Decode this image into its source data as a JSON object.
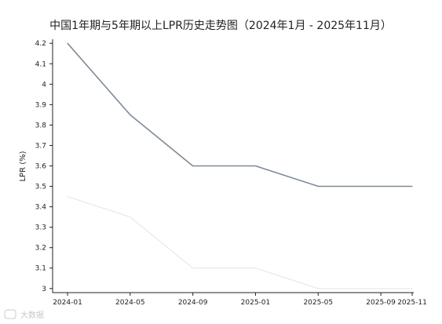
{
  "chart_data": {
    "type": "line",
    "title": "中国1年期与5年期以上LPR历史走势图（2024年1月 - 2025年11月）",
    "ylabel": "LPR (%)",
    "xlabel": "",
    "x": [
      "2024-01",
      "2024-05",
      "2024-09",
      "2025-01",
      "2025-05",
      "2025-09",
      "2025-11"
    ],
    "x_ticks": [
      "2024-01",
      "2024-05",
      "2024-09",
      "2025-01",
      "2025-05",
      "2025-09",
      "2025-11"
    ],
    "y_ticks": [
      "3",
      "3.1",
      "3.2",
      "3.3",
      "3.4",
      "3.5",
      "3.6",
      "3.7",
      "3.8",
      "3.9",
      "4",
      "4.1",
      "4.2"
    ],
    "ylim": [
      2.98,
      4.22
    ],
    "grid": false,
    "series": [
      {
        "color": "#7e8a96",
        "points": [
          {
            "x": "2024-01",
            "y": 4.2
          },
          {
            "x": "2024-05",
            "y": 3.85
          },
          {
            "x": "2024-09",
            "y": 3.6
          },
          {
            "x": "2025-01",
            "y": 3.6
          },
          {
            "x": "2025-05",
            "y": 3.5
          },
          {
            "x": "2025-09",
            "y": 3.5
          },
          {
            "x": "2025-11",
            "y": 3.5
          }
        ]
      },
      {
        "color": "#e8e8e8",
        "points": [
          {
            "x": "2024-01",
            "y": 3.45
          },
          {
            "x": "2024-05",
            "y": 3.35
          },
          {
            "x": "2024-09",
            "y": 3.1
          },
          {
            "x": "2025-01",
            "y": 3.1
          },
          {
            "x": "2025-05",
            "y": 3.0
          },
          {
            "x": "2025-09",
            "y": 3.0
          },
          {
            "x": "2025-11",
            "y": 3.0
          }
        ]
      }
    ]
  },
  "watermark": {
    "text": "大数据"
  }
}
